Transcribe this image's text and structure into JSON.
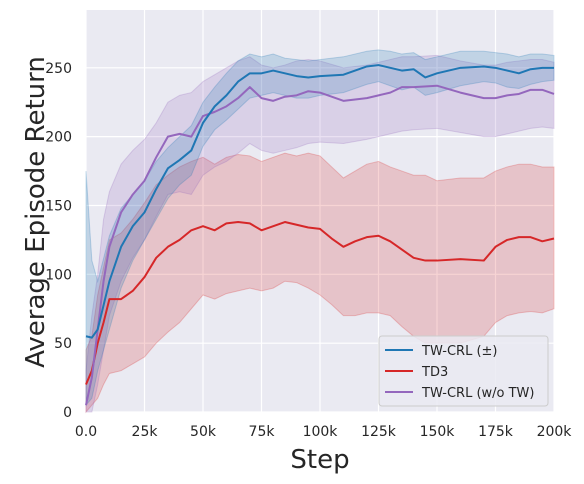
{
  "chart_data": {
    "type": "line",
    "title": "",
    "xlabel": "Step",
    "ylabel": "Average Episode Return",
    "xlim": [
      0,
      200000
    ],
    "ylim": [
      0,
      292
    ],
    "grid": true,
    "legend_position": "bottom-right",
    "x_ticks": [
      0,
      25000,
      50000,
      75000,
      100000,
      125000,
      150000,
      175000,
      200000
    ],
    "x_tick_labels": [
      "0.0",
      "25k",
      "50k",
      "75k",
      "100k",
      "125k",
      "150k",
      "175k",
      "200k"
    ],
    "y_ticks": [
      0,
      50,
      100,
      150,
      200,
      250
    ],
    "y_tick_labels": [
      "0",
      "50",
      "100",
      "150",
      "200",
      "250"
    ],
    "series": [
      {
        "name": "TW-CRL (±)",
        "color": "#1f77b4",
        "x": [
          0,
          2500,
          5000,
          10000,
          15000,
          20000,
          25000,
          30000,
          35000,
          40000,
          45000,
          50000,
          55000,
          60000,
          65000,
          70000,
          75000,
          80000,
          85000,
          90000,
          95000,
          100000,
          110000,
          120000,
          125000,
          130000,
          135000,
          140000,
          145000,
          150000,
          160000,
          170000,
          175000,
          180000,
          185000,
          190000,
          195000,
          200000
        ],
        "y": [
          55,
          54,
          60,
          95,
          120,
          135,
          145,
          162,
          177,
          183,
          190,
          210,
          222,
          230,
          240,
          246,
          246,
          248,
          246,
          244,
          243,
          244,
          245,
          251,
          252,
          250,
          248,
          249,
          243,
          246,
          250,
          251,
          250,
          248,
          246,
          249,
          250,
          250
        ],
        "lower": [
          5,
          10,
          30,
          60,
          90,
          110,
          125,
          140,
          155,
          165,
          172,
          193,
          205,
          212,
          220,
          228,
          230,
          232,
          230,
          228,
          228,
          230,
          232,
          238,
          240,
          237,
          234,
          236,
          230,
          232,
          237,
          240,
          239,
          236,
          235,
          238,
          240,
          241
        ],
        "upper": [
          175,
          110,
          95,
          128,
          148,
          158,
          168,
          182,
          192,
          200,
          208,
          225,
          236,
          246,
          255,
          260,
          258,
          260,
          257,
          256,
          255,
          256,
          258,
          262,
          263,
          262,
          260,
          261,
          256,
          258,
          262,
          262,
          261,
          260,
          258,
          260,
          260,
          259
        ]
      },
      {
        "name": "TD3",
        "color": "#d62728",
        "x": [
          0,
          2500,
          5000,
          7500,
          10000,
          15000,
          20000,
          25000,
          30000,
          35000,
          40000,
          45000,
          50000,
          55000,
          60000,
          65000,
          70000,
          75000,
          80000,
          85000,
          90000,
          95000,
          100000,
          105000,
          110000,
          115000,
          120000,
          125000,
          130000,
          135000,
          140000,
          145000,
          150000,
          160000,
          170000,
          175000,
          180000,
          185000,
          190000,
          195000,
          200000
        ],
        "y": [
          20,
          30,
          50,
          65,
          82,
          82,
          88,
          98,
          112,
          120,
          125,
          132,
          135,
          132,
          137,
          138,
          137,
          132,
          135,
          138,
          136,
          134,
          133,
          126,
          120,
          124,
          127,
          128,
          124,
          118,
          112,
          110,
          110,
          111,
          110,
          120,
          125,
          127,
          127,
          124,
          126
        ],
        "lower": [
          0,
          5,
          10,
          20,
          28,
          30,
          35,
          40,
          50,
          58,
          65,
          75,
          85,
          82,
          86,
          88,
          90,
          88,
          90,
          95,
          94,
          90,
          85,
          78,
          70,
          70,
          72,
          72,
          70,
          62,
          55,
          50,
          50,
          50,
          55,
          65,
          70,
          72,
          73,
          72,
          75
        ],
        "upper": [
          45,
          55,
          85,
          105,
          125,
          130,
          140,
          152,
          165,
          172,
          178,
          182,
          185,
          180,
          185,
          187,
          186,
          182,
          185,
          188,
          186,
          188,
          186,
          178,
          170,
          175,
          180,
          182,
          178,
          175,
          172,
          172,
          168,
          170,
          170,
          175,
          178,
          180,
          180,
          178,
          178
        ]
      },
      {
        "name": "TW-CRL (w/o TW)",
        "color": "#9467bd",
        "x": [
          0,
          2500,
          5000,
          7500,
          10000,
          15000,
          20000,
          25000,
          30000,
          35000,
          40000,
          45000,
          50000,
          55000,
          60000,
          65000,
          70000,
          75000,
          80000,
          85000,
          90000,
          95000,
          100000,
          110000,
          120000,
          125000,
          130000,
          135000,
          140000,
          150000,
          160000,
          170000,
          175000,
          180000,
          185000,
          190000,
          195000,
          200000
        ],
        "y": [
          5,
          25,
          60,
          95,
          120,
          145,
          158,
          168,
          185,
          200,
          202,
          200,
          215,
          218,
          222,
          228,
          236,
          228,
          226,
          229,
          230,
          233,
          232,
          226,
          228,
          230,
          232,
          236,
          236,
          237,
          232,
          228,
          228,
          230,
          231,
          234,
          234,
          231
        ],
        "lower": [
          0,
          0,
          20,
          45,
          70,
          95,
          112,
          125,
          142,
          158,
          160,
          158,
          172,
          178,
          182,
          188,
          195,
          190,
          188,
          190,
          192,
          195,
          196,
          195,
          198,
          200,
          202,
          204,
          205,
          206,
          203,
          200,
          200,
          202,
          204,
          206,
          207,
          206
        ],
        "upper": [
          30,
          70,
          100,
          140,
          160,
          180,
          190,
          198,
          210,
          225,
          230,
          232,
          240,
          245,
          250,
          255,
          258,
          252,
          250,
          252,
          255,
          256,
          255,
          250,
          252,
          254,
          256,
          258,
          258,
          259,
          255,
          252,
          252,
          254,
          255,
          256,
          256,
          254
        ]
      }
    ]
  }
}
